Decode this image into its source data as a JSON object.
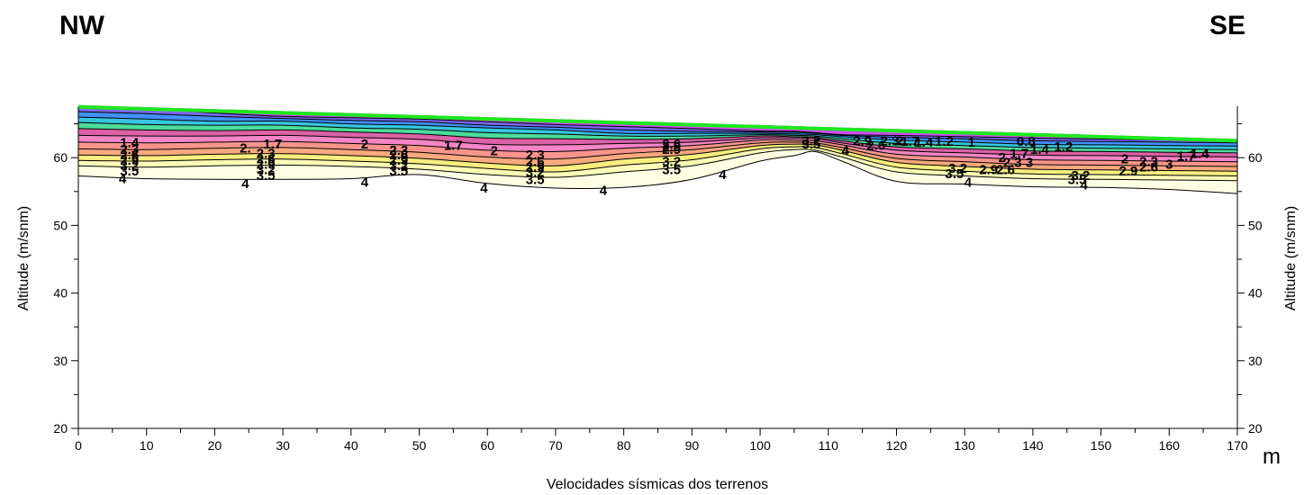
{
  "chart_data": {
    "type": "contour",
    "title": "",
    "corner_left": "NW",
    "corner_right": "SE",
    "xlabel": "Velocidades sísmicas dos terrenos",
    "xunit": "m",
    "ylabel_left": "Altitude (m/snm)",
    "ylabel_right": "Altitude (m/snm)",
    "xlim": [
      0,
      170
    ],
    "ylim": [
      20,
      70
    ],
    "x_ticks": [
      0,
      10,
      20,
      30,
      40,
      50,
      60,
      70,
      80,
      90,
      100,
      110,
      120,
      130,
      140,
      150,
      160,
      170
    ],
    "x_ticks_minor": [
      5,
      15,
      25,
      35,
      45,
      55,
      65,
      75,
      85,
      95,
      105,
      115,
      125,
      135,
      145,
      155,
      165
    ],
    "y_ticks": [
      20,
      30,
      40,
      50,
      60
    ],
    "y_ticks_minor": [
      25,
      35,
      45,
      55,
      65
    ],
    "grid": false,
    "surface_color": "#1ee81e",
    "surface": {
      "x": [
        0,
        170
      ],
      "y": [
        67.5,
        62.5
      ]
    },
    "contour_x": [
      0,
      10,
      20,
      30,
      40,
      50,
      60,
      70,
      80,
      90,
      100,
      105,
      108,
      112,
      120,
      130,
      140,
      150,
      160,
      170
    ],
    "contour_lines": [
      {
        "level": 0.8,
        "color": "#c83af0",
        "y": [
          67.4,
          67.2,
          66.6,
          66.1,
          65.9,
          65.7,
          65.3,
          64.9,
          64.6,
          64.3,
          63.95,
          63.9,
          63.7,
          63.4,
          63.3,
          63.1,
          62.9,
          62.75,
          62.6,
          62.45
        ]
      },
      {
        "level": 1,
        "color": "#6e58f0",
        "y": [
          66.8,
          66.5,
          66.1,
          65.8,
          65.5,
          65.3,
          64.8,
          64.5,
          64.1,
          63.9,
          63.8,
          63.75,
          63.6,
          63.3,
          63.0,
          62.8,
          62.5,
          62.4,
          62.3,
          62.2
        ]
      },
      {
        "level": 1.2,
        "color": "#2c84ff",
        "y": [
          66.0,
          65.7,
          65.4,
          65.4,
          65.0,
          64.8,
          64.4,
          64.1,
          63.6,
          63.6,
          63.6,
          63.5,
          63.4,
          63.1,
          62.6,
          62.3,
          62.0,
          61.9,
          61.8,
          61.7
        ]
      },
      {
        "level": 1.4,
        "color": "#20c0dc",
        "y": [
          65.2,
          64.9,
          64.8,
          64.8,
          64.4,
          64.2,
          63.7,
          63.5,
          63.2,
          63.2,
          63.4,
          63.3,
          63.2,
          62.8,
          62.1,
          61.8,
          61.5,
          61.4,
          61.3,
          61.2
        ]
      },
      {
        "level": 1.7,
        "color": "#38d890",
        "y": [
          64.3,
          64.1,
          64.0,
          64.1,
          63.8,
          63.5,
          62.9,
          62.8,
          62.7,
          62.8,
          63.2,
          63.1,
          63.0,
          62.5,
          61.6,
          61.3,
          61.0,
          60.9,
          60.8,
          60.7
        ]
      },
      {
        "level": 2,
        "color": "#d8509c",
        "y": [
          63.3,
          63.2,
          63.2,
          63.3,
          63.0,
          62.7,
          62.0,
          61.9,
          62.1,
          62.3,
          62.9,
          62.9,
          62.8,
          62.2,
          61.1,
          60.7,
          60.4,
          60.3,
          60.2,
          60.1
        ]
      },
      {
        "level": 2.3,
        "color": "#f478c0",
        "y": [
          62.3,
          62.2,
          62.3,
          62.4,
          62.1,
          61.8,
          61.1,
          60.9,
          61.4,
          61.8,
          62.6,
          62.6,
          62.5,
          61.9,
          60.5,
          60.1,
          59.7,
          59.6,
          59.5,
          59.4
        ]
      },
      {
        "level": 2.6,
        "color": "#f88880",
        "y": [
          61.3,
          61.2,
          61.4,
          61.5,
          61.2,
          60.8,
          60.1,
          59.8,
          60.6,
          61.2,
          62.2,
          62.3,
          62.2,
          61.5,
          59.9,
          59.4,
          59.0,
          58.9,
          58.8,
          58.7
        ]
      },
      {
        "level": 2.9,
        "color": "#f8a070",
        "y": [
          60.4,
          60.3,
          60.5,
          60.6,
          60.3,
          59.9,
          59.2,
          58.8,
          59.8,
          60.5,
          61.8,
          62.0,
          61.9,
          61.1,
          59.3,
          58.7,
          58.3,
          58.2,
          58.1,
          58.0
        ]
      },
      {
        "level": 3.2,
        "color": "#f8ec70",
        "y": [
          59.6,
          59.5,
          59.7,
          59.8,
          59.5,
          59.1,
          58.4,
          57.9,
          58.9,
          59.7,
          61.3,
          61.6,
          61.5,
          60.6,
          58.6,
          58.0,
          57.6,
          57.5,
          57.4,
          57.3
        ]
      },
      {
        "level": 3.5,
        "color": "#fcfcb0",
        "y": [
          58.8,
          58.6,
          58.8,
          58.9,
          58.7,
          58.3,
          57.5,
          57.1,
          57.9,
          58.8,
          60.7,
          61.2,
          61.1,
          60.1,
          57.9,
          57.3,
          56.9,
          56.8,
          56.7,
          56.6
        ]
      },
      {
        "level": 4,
        "color": "#ffffe0",
        "y": [
          57.3,
          56.9,
          56.8,
          56.8,
          56.9,
          57.5,
          56.2,
          55.5,
          55.6,
          56.8,
          59.5,
          60.3,
          60.9,
          59.5,
          56.5,
          56.1,
          55.7,
          55.6,
          55.3,
          54.7
        ]
      }
    ],
    "contour_labels": [
      {
        "text": "1.4",
        "x": 7.5,
        "y": 62.2
      },
      {
        "text": "2.3",
        "x": 7.5,
        "y": 61.2
      },
      {
        "text": "2.6",
        "x": 7.5,
        "y": 60.4
      },
      {
        "text": "2.9",
        "x": 7.5,
        "y": 59.6
      },
      {
        "text": "3.2",
        "x": 7.5,
        "y": 58.8
      },
      {
        "text": "3.5",
        "x": 7.5,
        "y": 58.0
      },
      {
        "text": "4",
        "x": 6.5,
        "y": 56.9
      },
      {
        "text": "2.",
        "x": 24.5,
        "y": 61.4
      },
      {
        "text": "1.7",
        "x": 28.5,
        "y": 62.0
      },
      {
        "text": "2.3",
        "x": 27.5,
        "y": 60.6
      },
      {
        "text": "2.6",
        "x": 27.5,
        "y": 59.8
      },
      {
        "text": "2.9",
        "x": 27.5,
        "y": 59.0
      },
      {
        "text": "3.2",
        "x": 27.5,
        "y": 58.2
      },
      {
        "text": "3.5",
        "x": 27.5,
        "y": 57.4
      },
      {
        "text": "4",
        "x": 24.5,
        "y": 56.2
      },
      {
        "text": "2",
        "x": 42.0,
        "y": 62.0
      },
      {
        "text": "2.3",
        "x": 47.0,
        "y": 61.1
      },
      {
        "text": "2.6",
        "x": 47.0,
        "y": 60.4
      },
      {
        "text": "2.9",
        "x": 47.0,
        "y": 59.6
      },
      {
        "text": "3.2",
        "x": 47.0,
        "y": 58.8
      },
      {
        "text": "3.5",
        "x": 47.0,
        "y": 58.0
      },
      {
        "text": "4",
        "x": 42.0,
        "y": 56.4
      },
      {
        "text": "1.7",
        "x": 55.0,
        "y": 61.8
      },
      {
        "text": "2",
        "x": 61.0,
        "y": 61.0
      },
      {
        "text": "2.3",
        "x": 67.0,
        "y": 60.4
      },
      {
        "text": "2.6",
        "x": 67.0,
        "y": 59.4
      },
      {
        "text": "2.9",
        "x": 67.0,
        "y": 58.6
      },
      {
        "text": "3.2",
        "x": 67.0,
        "y": 57.8
      },
      {
        "text": "3.5",
        "x": 67.0,
        "y": 56.8
      },
      {
        "text": "4",
        "x": 59.5,
        "y": 55.5
      },
      {
        "text": "4",
        "x": 77.0,
        "y": 55.2
      },
      {
        "text": "2.6",
        "x": 87.0,
        "y": 62.0
      },
      {
        "text": "2.9",
        "x": 87.0,
        "y": 61.2
      },
      {
        "text": "2.3",
        "x": 87.0,
        "y": 61.6
      },
      {
        "text": "3.2",
        "x": 87.0,
        "y": 59.4
      },
      {
        "text": "3.5",
        "x": 87.0,
        "y": 58.2
      },
      {
        "text": "4",
        "x": 94.5,
        "y": 57.5
      },
      {
        "text": "3.2",
        "x": 107.5,
        "y": 62.5
      },
      {
        "text": "3.5",
        "x": 107.5,
        "y": 62.0
      },
      {
        "text": "4",
        "x": 112.5,
        "y": 61.0
      },
      {
        "text": "2.9",
        "x": 115.0,
        "y": 62.5
      },
      {
        "text": "2.6",
        "x": 117.0,
        "y": 61.8
      },
      {
        "text": "2.3",
        "x": 119.0,
        "y": 62.5
      },
      {
        "text": "2",
        "x": 120.5,
        "y": 62.5
      },
      {
        "text": "1.7",
        "x": 122.0,
        "y": 62.4
      },
      {
        "text": "1.4",
        "x": 124.0,
        "y": 62.3
      },
      {
        "text": "1.2",
        "x": 127.0,
        "y": 62.4
      },
      {
        "text": "1",
        "x": 131.0,
        "y": 62.3
      },
      {
        "text": "0.8",
        "x": 139.0,
        "y": 62.4
      },
      {
        "text": "1.4",
        "x": 141.0,
        "y": 61.2
      },
      {
        "text": "1.2",
        "x": 144.5,
        "y": 61.6
      },
      {
        "text": "1.7",
        "x": 138.0,
        "y": 60.6
      },
      {
        "text": "2",
        "x": 135.5,
        "y": 60.0
      },
      {
        "text": "2.3",
        "x": 137.0,
        "y": 59.3
      },
      {
        "text": "3",
        "x": 139.5,
        "y": 59.3
      },
      {
        "text": "3.2",
        "x": 129.0,
        "y": 58.4
      },
      {
        "text": "3.5",
        "x": 128.5,
        "y": 57.6
      },
      {
        "text": "2.9",
        "x": 133.5,
        "y": 58.2
      },
      {
        "text": "2.6",
        "x": 136.0,
        "y": 58.2
      },
      {
        "text": "4",
        "x": 130.5,
        "y": 56.4
      },
      {
        "text": "3.2",
        "x": 147.0,
        "y": 57.4
      },
      {
        "text": "3.5",
        "x": 146.5,
        "y": 56.8
      },
      {
        "text": "4",
        "x": 147.5,
        "y": 56.0
      },
      {
        "text": "2",
        "x": 153.5,
        "y": 59.8
      },
      {
        "text": "2.3",
        "x": 157.0,
        "y": 59.4
      },
      {
        "text": "2.9",
        "x": 154.0,
        "y": 58.0
      },
      {
        "text": "2.6",
        "x": 157.0,
        "y": 58.6
      },
      {
        "text": "3",
        "x": 160.0,
        "y": 59.0
      },
      {
        "text": "1.7",
        "x": 162.5,
        "y": 60.2
      },
      {
        "text": "1.4",
        "x": 164.5,
        "y": 60.6
      }
    ]
  }
}
